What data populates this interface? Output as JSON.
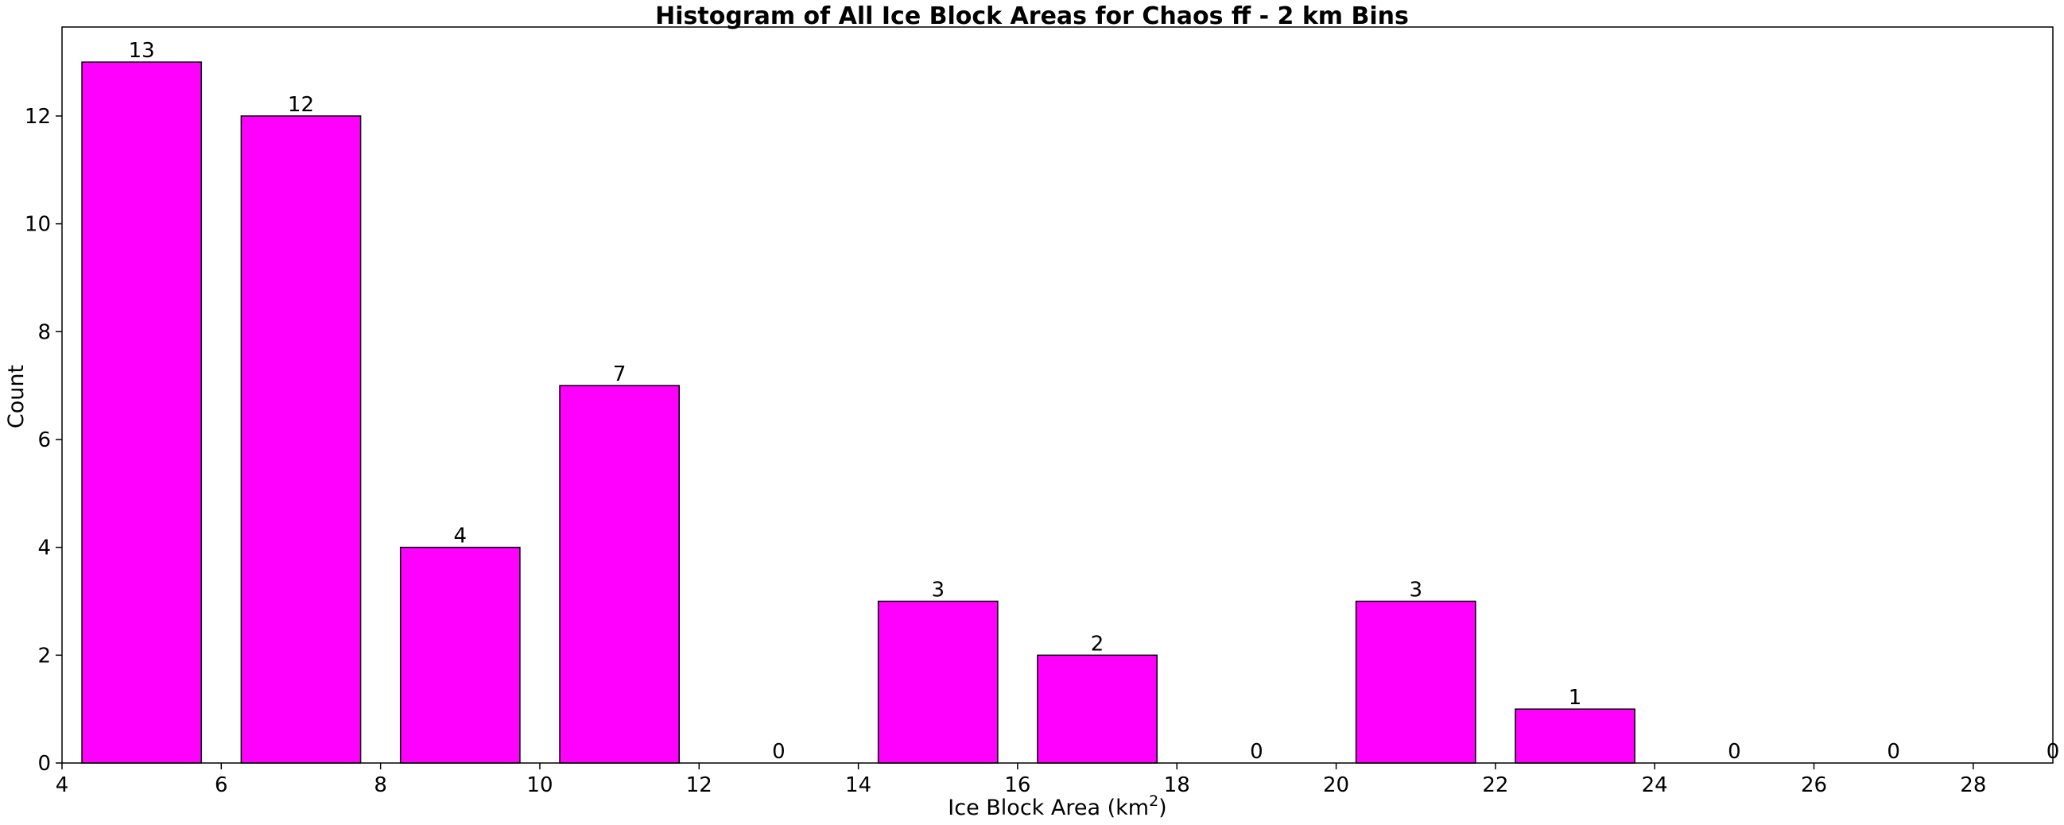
{
  "chart_data": {
    "type": "bar",
    "title": "Histogram of All Ice Block Areas for Chaos ff - 2 km Bins",
    "xlabel": "Ice Block Area (km",
    "xlabel_superscript": "2",
    "xlabel_suffix": ")",
    "ylabel": "Count",
    "xlim": [
      4,
      29
    ],
    "ylim": [
      0,
      13.65
    ],
    "bin_width": 2,
    "bar_width": 1.5,
    "bins": [
      {
        "center": 5,
        "count": 13
      },
      {
        "center": 7,
        "count": 12
      },
      {
        "center": 9,
        "count": 4
      },
      {
        "center": 11,
        "count": 7
      },
      {
        "center": 13,
        "count": 0
      },
      {
        "center": 15,
        "count": 3
      },
      {
        "center": 17,
        "count": 2
      },
      {
        "center": 19,
        "count": 0
      },
      {
        "center": 21,
        "count": 3
      },
      {
        "center": 23,
        "count": 1
      },
      {
        "center": 25,
        "count": 0
      },
      {
        "center": 27,
        "count": 0
      },
      {
        "center": 29,
        "count": 0
      }
    ],
    "x_ticks": [
      4,
      6,
      8,
      10,
      12,
      14,
      16,
      18,
      20,
      22,
      24,
      26,
      28
    ],
    "y_ticks": [
      0,
      2,
      4,
      6,
      8,
      10,
      12
    ],
    "bar_color": "#ff00ff",
    "edge_color": "#000000",
    "grid": false,
    "legend": "none"
  }
}
